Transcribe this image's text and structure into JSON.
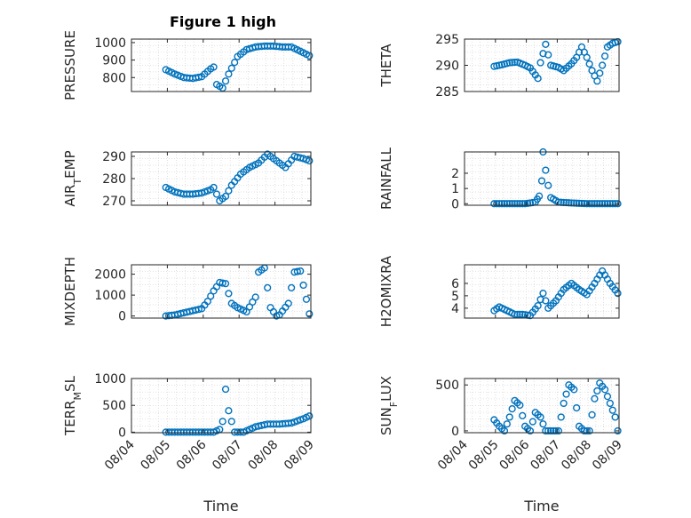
{
  "figure": {
    "title": "Figure 1 high",
    "marker_color": "#0072bd",
    "xlabel": "Time",
    "x_domain": [
      "08/04",
      "08/09"
    ],
    "x_ticks": [
      "08/04",
      "08/05",
      "08/06",
      "08/07",
      "08/08",
      "08/09"
    ]
  },
  "chart_data": [
    {
      "type": "scatter",
      "ylabel": "PRESSURE",
      "ylim": [
        720,
        1020
      ],
      "yticks": [
        800,
        900,
        1000
      ],
      "grid": true,
      "x_data_start": "08/04 23:00",
      "x_data_end": "08/08 23:00",
      "x": [
        "08/04 23:00",
        "08/05 05:00",
        "08/05 11:00",
        "08/05 17:00",
        "08/05 23:00",
        "08/06 05:00",
        "08/06 07:00",
        "08/06 09:00",
        "08/06 13:00",
        "08/06 17:00",
        "08/06 23:00",
        "08/07 05:00",
        "08/07 11:00",
        "08/07 17:00",
        "08/07 23:00",
        "08/08 05:00",
        "08/08 11:00",
        "08/08 17:00",
        "08/08 23:00"
      ],
      "y": [
        845,
        820,
        800,
        795,
        805,
        850,
        860,
        760,
        740,
        820,
        920,
        960,
        975,
        980,
        980,
        975,
        975,
        950,
        925
      ]
    },
    {
      "type": "scatter",
      "ylabel": "THETA",
      "ylim": [
        285,
        295
      ],
      "yticks": [
        285,
        290,
        295
      ],
      "grid": true,
      "x": [
        "08/04 23:00",
        "08/05 05:00",
        "08/05 11:00",
        "08/05 17:00",
        "08/05 23:00",
        "08/06 03:00",
        "08/06 09:00",
        "08/06 11:00",
        "08/06 15:00",
        "08/06 19:00",
        "08/07 01:00",
        "08/07 05:00",
        "08/07 11:00",
        "08/07 15:00",
        "08/07 19:00",
        "08/07 23:00",
        "08/08 03:00",
        "08/08 07:00",
        "08/08 11:00",
        "08/08 15:00",
        "08/08 19:00",
        "08/08 23:00"
      ],
      "y": [
        289.8,
        290.1,
        290.5,
        290.6,
        290.0,
        289.5,
        287.5,
        290.5,
        294.0,
        290.0,
        289.6,
        289.0,
        290.3,
        291.5,
        293.5,
        291.5,
        289.0,
        287.0,
        290.0,
        293.5,
        294.2,
        294.5
      ]
    },
    {
      "type": "scatter",
      "ylabel": "AIR_TEMP",
      "ylim": [
        268,
        292
      ],
      "yticks": [
        270,
        280,
        290
      ],
      "grid": true,
      "x": [
        "08/04 23:00",
        "08/05 05:00",
        "08/05 11:00",
        "08/05 17:00",
        "08/05 23:00",
        "08/06 05:00",
        "08/06 07:00",
        "08/06 11:00",
        "08/06 15:00",
        "08/06 19:00",
        "08/07 01:00",
        "08/07 07:00",
        "08/07 13:00",
        "08/07 19:00",
        "08/08 01:00",
        "08/08 07:00",
        "08/08 13:00",
        "08/08 19:00",
        "08/08 23:00"
      ],
      "y": [
        276,
        274,
        273,
        273,
        273.5,
        275,
        276,
        270,
        272,
        277,
        282,
        285,
        287,
        291,
        288,
        285,
        290,
        289,
        288
      ]
    },
    {
      "type": "scatter",
      "ylabel": "RAINFALL",
      "ylim": [
        -0.1,
        3.4
      ],
      "yticks": [
        0,
        1,
        2
      ],
      "grid": true,
      "x": [
        "08/04 23:00",
        "08/05 11:00",
        "08/05 23:00",
        "08/06 07:00",
        "08/06 10:00",
        "08/06 12:00",
        "08/06 13:00",
        "08/06 15:00",
        "08/06 17:00",
        "08/06 19:00",
        "08/07 01:00",
        "08/07 11:00",
        "08/07 23:00",
        "08/08 11:00",
        "08/08 23:00"
      ],
      "y": [
        0,
        0,
        0,
        0.1,
        0.5,
        1.5,
        3.5,
        2.2,
        1.2,
        0.4,
        0.1,
        0.05,
        0,
        0,
        0
      ]
    },
    {
      "type": "scatter",
      "ylabel": "MIXDEPTH",
      "ylim": [
        -100,
        2450
      ],
      "yticks": [
        0,
        1000,
        2000
      ],
      "grid": true,
      "x": [
        "08/04 23:00",
        "08/05 05:00",
        "08/05 11:00",
        "08/05 17:00",
        "08/05 23:00",
        "08/06 03:00",
        "08/06 07:00",
        "08/06 11:00",
        "08/06 15:00",
        "08/06 19:00",
        "08/06 23:00",
        "08/07 05:00",
        "08/07 11:00",
        "08/07 13:00",
        "08/07 17:00",
        "08/07 21:00",
        "08/08 01:00",
        "08/08 03:00",
        "08/08 09:00",
        "08/08 13:00",
        "08/08 17:00",
        "08/08 21:00",
        "08/08 23:00"
      ],
      "y": [
        0,
        50,
        150,
        250,
        350,
        700,
        1200,
        1600,
        1550,
        600,
        400,
        200,
        900,
        2100,
        2300,
        400,
        0,
        50,
        600,
        2100,
        2150,
        800,
        100
      ]
    },
    {
      "type": "scatter",
      "ylabel": "H2OMIXRA",
      "ylim": [
        3.2,
        7.5
      ],
      "yticks": [
        4,
        5,
        6
      ],
      "grid": true,
      "x": [
        "08/04 23:00",
        "08/05 03:00",
        "08/05 09:00",
        "08/05 15:00",
        "08/05 21:00",
        "08/06 03:00",
        "08/06 09:00",
        "08/06 13:00",
        "08/06 17:00",
        "08/06 23:00",
        "08/07 05:00",
        "08/07 11:00",
        "08/07 17:00",
        "08/07 23:00",
        "08/08 05:00",
        "08/08 11:00",
        "08/08 17:00",
        "08/08 23:00"
      ],
      "y": [
        3.8,
        4.1,
        3.8,
        3.5,
        3.5,
        3.4,
        4.2,
        5.2,
        4.0,
        4.6,
        5.5,
        6.0,
        5.5,
        5.1,
        6.0,
        7.0,
        6.0,
        5.2
      ]
    },
    {
      "type": "scatter",
      "ylabel": "TERR_MSL",
      "ylim": [
        -10,
        1000
      ],
      "yticks": [
        0,
        500,
        1000
      ],
      "grid": true,
      "x": [
        "08/04 23:00",
        "08/05 11:00",
        "08/05 23:00",
        "08/06 07:00",
        "08/06 11:00",
        "08/06 13:00",
        "08/06 15:00",
        "08/06 17:00",
        "08/06 21:00",
        "08/07 03:00",
        "08/07 11:00",
        "08/07 19:00",
        "08/08 03:00",
        "08/08 11:00",
        "08/08 19:00",
        "08/08 23:00"
      ],
      "y": [
        0,
        0,
        0,
        0,
        50,
        200,
        800,
        400,
        0,
        0,
        100,
        150,
        150,
        170,
        250,
        300
      ]
    },
    {
      "type": "scatter",
      "ylabel": "SUN_FLUX",
      "ylim": [
        -20,
        570
      ],
      "yticks": [
        0,
        500
      ],
      "grid": true,
      "x": [
        "08/04 23:00",
        "08/05 03:00",
        "08/05 07:00",
        "08/05 11:00",
        "08/05 15:00",
        "08/05 19:00",
        "08/05 23:00",
        "08/06 03:00",
        "08/06 07:00",
        "08/06 11:00",
        "08/06 15:00",
        "08/06 19:00",
        "08/07 01:00",
        "08/07 05:00",
        "08/07 09:00",
        "08/07 13:00",
        "08/07 17:00",
        "08/07 21:00",
        "08/08 01:00",
        "08/08 05:00",
        "08/08 09:00",
        "08/08 13:00",
        "08/08 17:00",
        "08/08 21:00",
        "08/08 23:00"
      ],
      "y": [
        120,
        50,
        0,
        150,
        330,
        280,
        50,
        0,
        200,
        150,
        0,
        0,
        0,
        300,
        500,
        450,
        50,
        0,
        0,
        350,
        520,
        450,
        300,
        150,
        0
      ]
    }
  ]
}
